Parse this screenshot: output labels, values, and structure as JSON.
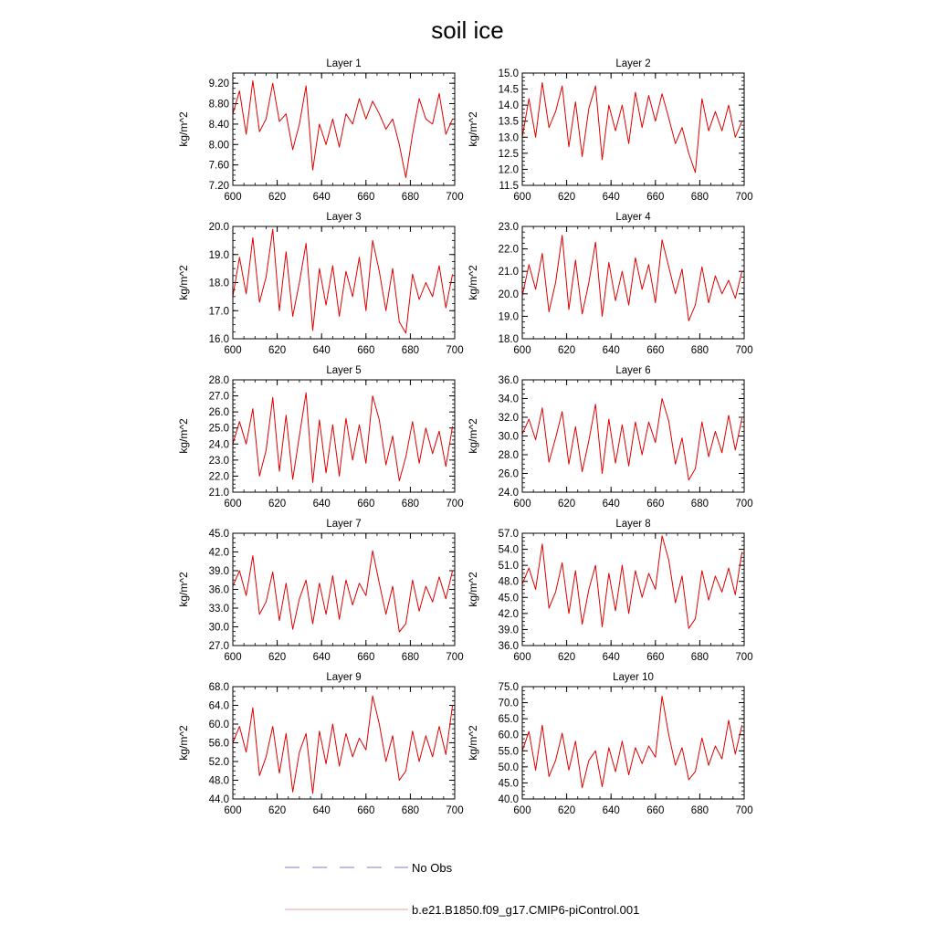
{
  "title": "soil ice",
  "legend": {
    "placement": "bottom",
    "entries": [
      {
        "label": "No Obs",
        "color": "#7b7bd6",
        "style": "dashed"
      },
      {
        "label": "b.e21.B1850.f09_g17.CMIP6-piControl.001",
        "color": "#e8a0a0",
        "style": "solid"
      }
    ]
  },
  "chart_data": [
    {
      "type": "line",
      "title": "Layer 1",
      "ylabel": "kg/m^2",
      "xlim": [
        600,
        700
      ],
      "xticks": [
        600,
        620,
        640,
        660,
        680,
        700
      ],
      "ylim": [
        7.2,
        9.4
      ],
      "yticks": [
        "7.20",
        "7.60",
        "8.00",
        "8.40",
        "8.80",
        "9.20"
      ],
      "color": "#e00000",
      "x": [
        600,
        603,
        606,
        609,
        612,
        615,
        618,
        621,
        624,
        627,
        630,
        633,
        636,
        639,
        642,
        645,
        648,
        651,
        654,
        657,
        660,
        663,
        666,
        669,
        672,
        675,
        678,
        681,
        684,
        687,
        690,
        693,
        696,
        699
      ],
      "y": [
        8.6,
        9.05,
        8.2,
        9.25,
        8.25,
        8.5,
        9.2,
        8.45,
        8.6,
        7.9,
        8.4,
        9.15,
        7.5,
        8.4,
        8.0,
        8.5,
        7.95,
        8.6,
        8.4,
        8.9,
        8.5,
        8.85,
        8.6,
        8.3,
        8.5,
        8.0,
        7.35,
        8.2,
        8.9,
        8.5,
        8.4,
        9.0,
        8.2,
        8.5
      ]
    },
    {
      "type": "line",
      "title": "Layer 2",
      "ylabel": "kg/m^2",
      "xlim": [
        600,
        700
      ],
      "xticks": [
        600,
        620,
        640,
        660,
        680,
        700
      ],
      "ylim": [
        11.5,
        15.0
      ],
      "yticks": [
        "11.5",
        "12.0",
        "12.5",
        "13.0",
        "13.5",
        "14.0",
        "14.5",
        "15.0"
      ],
      "color": "#e00000",
      "x": [
        600,
        603,
        606,
        609,
        612,
        615,
        618,
        621,
        624,
        627,
        630,
        633,
        636,
        639,
        642,
        645,
        648,
        651,
        654,
        657,
        660,
        663,
        666,
        669,
        672,
        675,
        678,
        681,
        684,
        687,
        690,
        693,
        696,
        699
      ],
      "y": [
        13.0,
        14.2,
        13.0,
        14.7,
        13.3,
        13.8,
        14.6,
        12.7,
        14.1,
        12.4,
        13.9,
        14.6,
        12.3,
        14.0,
        13.2,
        14.0,
        12.8,
        14.4,
        13.3,
        14.3,
        13.5,
        14.35,
        13.6,
        12.8,
        13.3,
        12.5,
        11.9,
        14.2,
        13.2,
        13.8,
        13.2,
        14.0,
        13.0,
        13.5
      ]
    },
    {
      "type": "line",
      "title": "Layer 3",
      "ylabel": "kg/m^2",
      "xlim": [
        600,
        700
      ],
      "xticks": [
        600,
        620,
        640,
        660,
        680,
        700
      ],
      "ylim": [
        16.0,
        20.0
      ],
      "yticks": [
        "16.0",
        "17.0",
        "18.0",
        "19.0",
        "20.0"
      ],
      "color": "#e00000",
      "x": [
        600,
        603,
        606,
        609,
        612,
        615,
        618,
        621,
        624,
        627,
        630,
        633,
        636,
        639,
        642,
        645,
        648,
        651,
        654,
        657,
        660,
        663,
        666,
        669,
        672,
        675,
        678,
        681,
        684,
        687,
        690,
        693,
        696,
        699
      ],
      "y": [
        17.5,
        18.9,
        17.6,
        19.6,
        17.3,
        18.2,
        19.9,
        17.0,
        19.1,
        16.8,
        18.0,
        19.4,
        16.3,
        18.5,
        17.2,
        18.6,
        16.8,
        18.4,
        17.5,
        18.9,
        17.0,
        19.5,
        18.4,
        17.0,
        18.5,
        16.6,
        16.2,
        18.3,
        17.4,
        18.0,
        17.5,
        18.6,
        17.1,
        18.3
      ]
    },
    {
      "type": "line",
      "title": "Layer 4",
      "ylabel": "kg/m^2",
      "xlim": [
        600,
        700
      ],
      "xticks": [
        600,
        620,
        640,
        660,
        680,
        700
      ],
      "ylim": [
        18.0,
        23.0
      ],
      "yticks": [
        "18.0",
        "19.0",
        "20.0",
        "21.0",
        "22.0",
        "23.0"
      ],
      "color": "#e00000",
      "x": [
        600,
        603,
        606,
        609,
        612,
        615,
        618,
        621,
        624,
        627,
        630,
        633,
        636,
        639,
        642,
        645,
        648,
        651,
        654,
        657,
        660,
        663,
        666,
        669,
        672,
        675,
        678,
        681,
        684,
        687,
        690,
        693,
        696,
        699
      ],
      "y": [
        19.9,
        21.3,
        20.2,
        21.8,
        19.2,
        20.5,
        22.6,
        19.3,
        21.5,
        19.1,
        20.5,
        22.3,
        19.0,
        21.4,
        19.7,
        21.0,
        19.5,
        21.6,
        20.2,
        21.3,
        19.6,
        22.4,
        21.2,
        20.0,
        21.1,
        18.8,
        19.5,
        21.2,
        19.6,
        20.8,
        20.0,
        20.6,
        19.8,
        21.0
      ]
    },
    {
      "type": "line",
      "title": "Layer 5",
      "ylabel": "kg/m^2",
      "xlim": [
        600,
        700
      ],
      "xticks": [
        600,
        620,
        640,
        660,
        680,
        700
      ],
      "ylim": [
        21.0,
        28.0
      ],
      "yticks": [
        "21.0",
        "22.0",
        "23.0",
        "24.0",
        "25.0",
        "26.0",
        "27.0",
        "28.0"
      ],
      "color": "#e00000",
      "x": [
        600,
        603,
        606,
        609,
        612,
        615,
        618,
        621,
        624,
        627,
        630,
        633,
        636,
        639,
        642,
        645,
        648,
        651,
        654,
        657,
        660,
        663,
        666,
        669,
        672,
        675,
        678,
        681,
        684,
        687,
        690,
        693,
        696,
        699
      ],
      "y": [
        24.0,
        25.4,
        24.0,
        26.2,
        22.0,
        23.6,
        26.9,
        22.3,
        25.8,
        21.8,
        24.5,
        27.2,
        21.6,
        25.5,
        22.2,
        25.2,
        22.0,
        25.6,
        23.0,
        25.2,
        22.8,
        27.0,
        25.5,
        22.7,
        24.5,
        21.7,
        23.2,
        25.4,
        22.8,
        25.0,
        23.4,
        24.8,
        22.6,
        25.1
      ]
    },
    {
      "type": "line",
      "title": "Layer 6",
      "ylabel": "kg/m^2",
      "xlim": [
        600,
        700
      ],
      "xticks": [
        600,
        620,
        640,
        660,
        680,
        700
      ],
      "ylim": [
        24.0,
        36.0
      ],
      "yticks": [
        "24.0",
        "26.0",
        "28.0",
        "30.0",
        "32.0",
        "34.0",
        "36.0"
      ],
      "color": "#e00000",
      "x": [
        600,
        603,
        606,
        609,
        612,
        615,
        618,
        621,
        624,
        627,
        630,
        633,
        636,
        639,
        642,
        645,
        648,
        651,
        654,
        657,
        660,
        663,
        666,
        669,
        672,
        675,
        678,
        681,
        684,
        687,
        690,
        693,
        696,
        699
      ],
      "y": [
        30.2,
        31.8,
        29.6,
        33.0,
        27.2,
        29.8,
        32.6,
        27.0,
        31.0,
        26.2,
        29.5,
        33.4,
        26.0,
        31.8,
        27.1,
        31.2,
        26.8,
        31.5,
        28.0,
        31.5,
        29.3,
        34.0,
        31.6,
        27.0,
        29.8,
        25.3,
        26.5,
        31.5,
        27.8,
        30.5,
        28.2,
        32.2,
        28.5,
        31.9
      ]
    },
    {
      "type": "line",
      "title": "Layer 7",
      "ylabel": "kg/m^2",
      "xlim": [
        600,
        700
      ],
      "xticks": [
        600,
        620,
        640,
        660,
        680,
        700
      ],
      "ylim": [
        27.0,
        45.0
      ],
      "yticks": [
        "27.0",
        "30.0",
        "33.0",
        "36.0",
        "39.0",
        "42.0",
        "45.0"
      ],
      "color": "#e00000",
      "x": [
        600,
        603,
        606,
        609,
        612,
        615,
        618,
        621,
        624,
        627,
        630,
        633,
        636,
        639,
        642,
        645,
        648,
        651,
        654,
        657,
        660,
        663,
        666,
        669,
        672,
        675,
        678,
        681,
        684,
        687,
        690,
        693,
        696,
        699
      ],
      "y": [
        36.5,
        39.0,
        35.0,
        41.4,
        32.0,
        34.0,
        38.8,
        31.0,
        37.0,
        29.6,
        34.5,
        37.5,
        30.5,
        37.0,
        32.0,
        38.2,
        31.2,
        37.5,
        33.5,
        37.0,
        35.0,
        42.2,
        37.0,
        32.0,
        36.5,
        29.2,
        30.5,
        37.5,
        32.5,
        36.5,
        34.0,
        38.0,
        34.5,
        39.0
      ]
    },
    {
      "type": "line",
      "title": "Layer 8",
      "ylabel": "kg/m^2",
      "xlim": [
        600,
        700
      ],
      "xticks": [
        600,
        620,
        640,
        660,
        680,
        700
      ],
      "ylim": [
        36.0,
        57.0
      ],
      "yticks": [
        "36.0",
        "39.0",
        "42.0",
        "45.0",
        "48.0",
        "51.0",
        "54.0",
        "57.0"
      ],
      "color": "#e00000",
      "x": [
        600,
        603,
        606,
        609,
        612,
        615,
        618,
        621,
        624,
        627,
        630,
        633,
        636,
        639,
        642,
        645,
        648,
        651,
        654,
        657,
        660,
        663,
        666,
        669,
        672,
        675,
        678,
        681,
        684,
        687,
        690,
        693,
        696,
        699
      ],
      "y": [
        47.5,
        50.5,
        46.5,
        55.0,
        43.0,
        46.0,
        51.5,
        42.0,
        50.0,
        40.0,
        46.5,
        51.0,
        39.5,
        49.5,
        42.5,
        51.0,
        42.0,
        50.0,
        45.0,
        49.5,
        46.5,
        56.5,
        52.0,
        44.0,
        49.0,
        39.2,
        41.0,
        50.0,
        44.5,
        49.0,
        46.0,
        50.5,
        45.5,
        53.5
      ]
    },
    {
      "type": "line",
      "title": "Layer 9",
      "ylabel": "kg/m^2",
      "xlim": [
        600,
        700
      ],
      "xticks": [
        600,
        620,
        640,
        660,
        680,
        700
      ],
      "ylim": [
        44.0,
        68.0
      ],
      "yticks": [
        "44.0",
        "48.0",
        "52.0",
        "56.0",
        "60.0",
        "64.0",
        "68.0"
      ],
      "color": "#e00000",
      "x": [
        600,
        603,
        606,
        609,
        612,
        615,
        618,
        621,
        624,
        627,
        630,
        633,
        636,
        639,
        642,
        645,
        648,
        651,
        654,
        657,
        660,
        663,
        666,
        669,
        672,
        675,
        678,
        681,
        684,
        687,
        690,
        693,
        696,
        699
      ],
      "y": [
        56.0,
        59.5,
        54.0,
        63.5,
        49.0,
        53.0,
        59.5,
        49.5,
        58.0,
        45.5,
        54.0,
        58.0,
        45.2,
        58.5,
        51.5,
        60.0,
        51.0,
        58.0,
        53.0,
        57.0,
        54.5,
        66.0,
        60.0,
        52.0,
        57.5,
        48.0,
        50.0,
        58.5,
        52.0,
        57.5,
        53.0,
        59.5,
        53.5,
        64.0
      ]
    },
    {
      "type": "line",
      "title": "Layer 10",
      "ylabel": "kg/m^2",
      "xlim": [
        600,
        700
      ],
      "xticks": [
        600,
        620,
        640,
        660,
        680,
        700
      ],
      "ylim": [
        40.0,
        75.0
      ],
      "yticks": [
        "40.0",
        "45.0",
        "50.0",
        "55.0",
        "60.0",
        "65.0",
        "70.0",
        "75.0"
      ],
      "color": "#e00000",
      "x": [
        600,
        603,
        606,
        609,
        612,
        615,
        618,
        621,
        624,
        627,
        630,
        633,
        636,
        639,
        642,
        645,
        648,
        651,
        654,
        657,
        660,
        663,
        666,
        669,
        672,
        675,
        678,
        681,
        684,
        687,
        690,
        693,
        696,
        699
      ],
      "y": [
        55.0,
        61.0,
        49.0,
        63.0,
        47.0,
        52.0,
        60.5,
        49.0,
        58.0,
        43.5,
        52.0,
        55.0,
        43.8,
        56.0,
        48.5,
        58.0,
        47.5,
        56.0,
        51.0,
        56.5,
        53.0,
        72.0,
        60.0,
        50.5,
        56.0,
        46.0,
        48.5,
        59.0,
        50.5,
        56.5,
        52.5,
        64.5,
        54.0,
        63.0
      ]
    }
  ]
}
